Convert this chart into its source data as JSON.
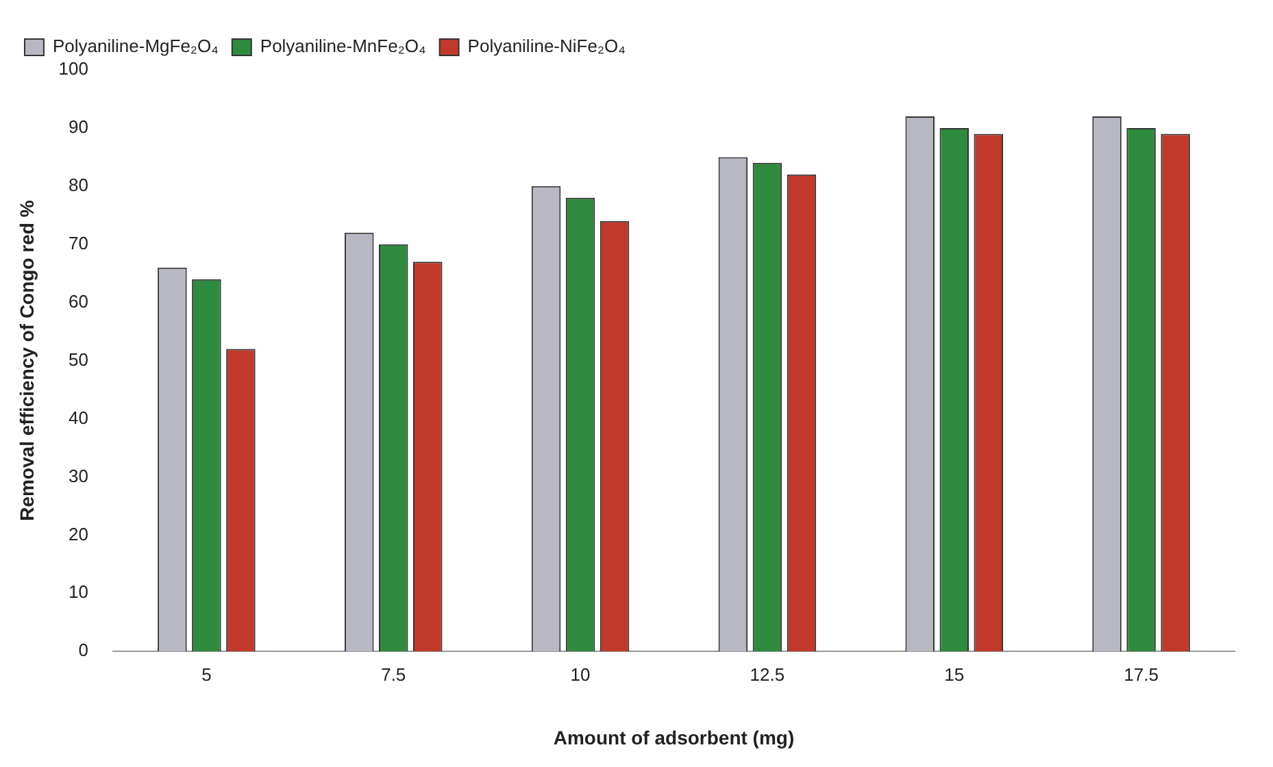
{
  "chart_data": {
    "type": "bar",
    "xlabel": "Amount of adsorbent (mg)",
    "ylabel": "Removal efficiency of Congo red %",
    "categories": [
      "5",
      "7.5",
      "10",
      "12.5",
      "15",
      "17.5"
    ],
    "series": [
      {
        "name": "Polyaniline-MgFe₂O₄",
        "color": "#b8b8c4",
        "values": [
          66,
          72,
          80,
          85,
          92,
          92
        ]
      },
      {
        "name": "Polyaniline-MnFe₂O₄",
        "color": "#2e8b3e",
        "values": [
          64,
          70,
          78,
          84,
          90,
          90
        ]
      },
      {
        "name": "Polyaniline-NiFe₂O₄",
        "color": "#c0392b",
        "values": [
          52,
          67,
          74,
          82,
          89,
          89
        ]
      }
    ],
    "ylim": [
      0,
      100
    ],
    "yticks": [
      0,
      10,
      20,
      30,
      40,
      50,
      60,
      70,
      80,
      90,
      100
    ],
    "grid": false,
    "legend": "top left"
  }
}
